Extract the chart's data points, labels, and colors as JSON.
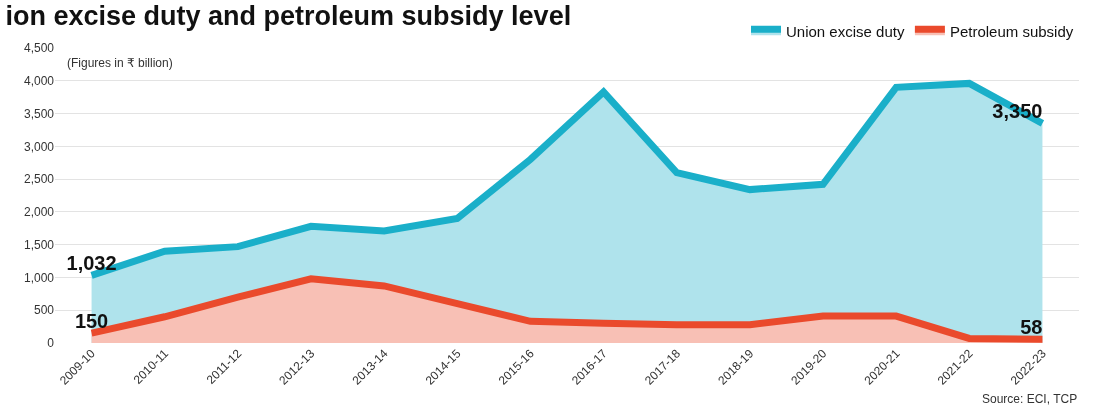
{
  "chart_data": {
    "type": "area",
    "title": "ion excise duty and petroleum subsidy level",
    "annotations": [
      "(Figures in ₹ billion)",
      "Source: ECI, TCP"
    ],
    "categories": [
      "2009-10",
      "2010-11",
      "2011-12",
      "2012-13",
      "2013-14",
      "2014-15",
      "2015-16",
      "2016-17",
      "2017-18",
      "2018-19",
      "2019-20",
      "2020-21",
      "2021-22",
      "2022-23"
    ],
    "series": [
      {
        "name": "Union excise duty",
        "color": "#1aafc9",
        "values": [
          1032,
          1400,
          1470,
          1780,
          1710,
          1900,
          2800,
          3830,
          2600,
          2340,
          2420,
          3900,
          3960,
          3350
        ],
        "value_labels": [
          "1,032",
          null,
          null,
          null,
          null,
          null,
          null,
          null,
          null,
          null,
          null,
          null,
          null,
          "3,350"
        ]
      },
      {
        "name": "Petroleum subsidy",
        "color": "#ea4a2c",
        "values": [
          150,
          400,
          700,
          980,
          870,
          600,
          330,
          300,
          280,
          280,
          410,
          410,
          70,
          58
        ],
        "value_labels": [
          "150",
          null,
          null,
          null,
          null,
          null,
          null,
          null,
          null,
          null,
          null,
          null,
          null,
          "58"
        ]
      }
    ],
    "ylim": [
      0,
      4500
    ],
    "yticks": [
      0,
      500,
      {
        "value": 1000,
        "label": "1,000"
      },
      {
        "value": 1500,
        "label": "1,500"
      },
      {
        "value": 2000,
        "label": "2,000"
      },
      {
        "value": 2500,
        "label": "2,500"
      },
      {
        "value": 3000,
        "label": "3,000"
      },
      {
        "value": 3500,
        "label": "3,500"
      },
      {
        "value": 4000,
        "label": "4,000"
      },
      {
        "value": 4500,
        "label": "4,500"
      }
    ],
    "grid": "y",
    "legend": "top right"
  }
}
